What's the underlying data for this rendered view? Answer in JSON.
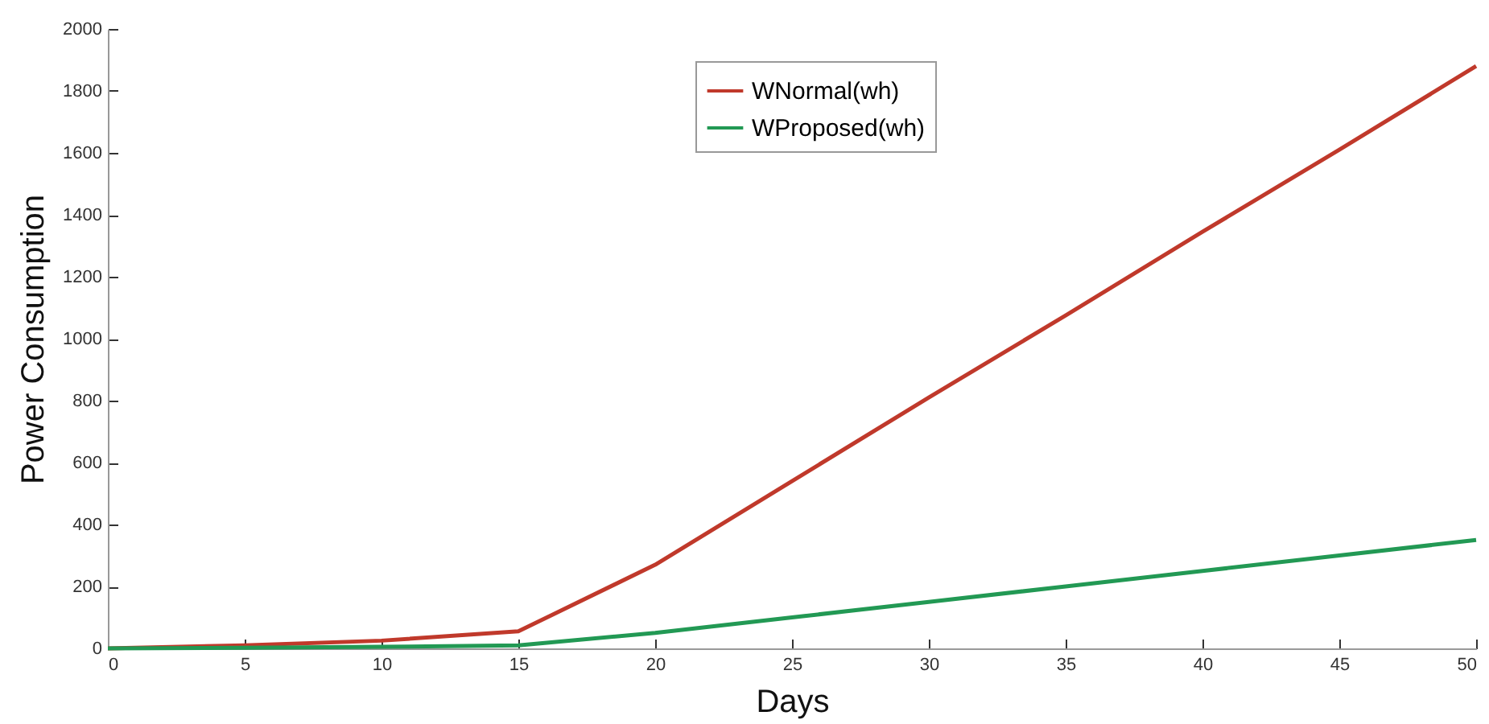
{
  "chart_data": {
    "type": "line",
    "xlabel": "Days",
    "ylabel": "Power Consumption",
    "x": [
      0,
      5,
      10,
      15,
      20,
      25,
      30,
      35,
      40,
      45,
      50
    ],
    "series": [
      {
        "name": "WNormal(wh)",
        "color": "#c0392b",
        "values": [
          0,
          10,
          25,
          55,
          270,
          540,
          810,
          1075,
          1345,
          1610,
          1880
        ]
      },
      {
        "name": "WProposed(wh)",
        "color": "#229954",
        "values": [
          0,
          2,
          5,
          10,
          50,
          100,
          150,
          200,
          250,
          300,
          350
        ]
      }
    ],
    "xlim": [
      0,
      50
    ],
    "xticks": [
      0,
      5,
      10,
      15,
      20,
      25,
      30,
      35,
      40,
      45,
      50
    ],
    "ylim": [
      0,
      2000
    ],
    "yticks": [
      0,
      200,
      400,
      600,
      800,
      1000,
      1200,
      1400,
      1600,
      1800,
      2000
    ],
    "grid": false,
    "legend": "top",
    "marker": "none",
    "line_style": "solid"
  }
}
